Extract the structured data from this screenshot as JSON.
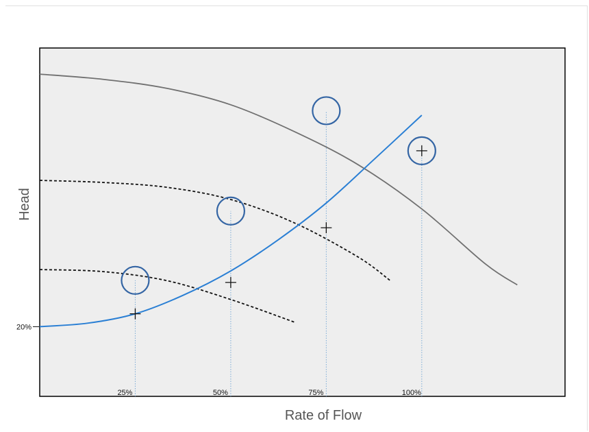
{
  "chart_data": {
    "type": "line",
    "title": "",
    "xlabel": "Rate of Flow",
    "ylabel": "Head",
    "xlim": [
      0,
      165
    ],
    "ylim": [
      0,
      100
    ],
    "grid": false,
    "x_tick_labels": [
      {
        "x": 30,
        "label": "25%"
      },
      {
        "x": 60,
        "label": "50%"
      },
      {
        "x": 90,
        "label": "75%"
      },
      {
        "x": 120,
        "label": "100%"
      }
    ],
    "y_tick_labels": [
      {
        "y": 20,
        "label": "20%"
      }
    ],
    "colors": {
      "plot_background": "#eeeeee",
      "pump_curve": "#707070",
      "system_curve": "#2a7fd4",
      "reduced_speed_curves": "#111111",
      "markers": "#111111",
      "circles": "#3465a4",
      "drop_lines": "#7aaad6"
    },
    "series": [
      {
        "style": "solid-gray",
        "x": [
          0,
          20,
          40,
          60,
          80,
          100,
          120,
          140,
          150
        ],
        "y": [
          92.5,
          91,
          88.4,
          83.7,
          76,
          66.5,
          53.8,
          38,
          32
        ]
      },
      {
        "style": "dashed-black",
        "x": [
          0,
          20,
          40,
          60,
          80,
          100,
          110
        ],
        "y": [
          62,
          61.4,
          60,
          56.5,
          49.8,
          40,
          33.3
        ]
      },
      {
        "style": "dashed-black",
        "x": [
          0,
          20,
          40,
          60,
          80
        ],
        "y": [
          36.4,
          35.8,
          33.2,
          27.8,
          21.3
        ]
      },
      {
        "style": "solid-blue",
        "x": [
          0,
          15,
          30,
          45,
          60,
          75,
          90,
          105,
          120
        ],
        "y": [
          20,
          21,
          23.7,
          29,
          36,
          45,
          55.5,
          68,
          80.7
        ]
      }
    ],
    "markers": [
      {
        "x": 30,
        "y": 23.7
      },
      {
        "x": 60,
        "y": 32.7
      },
      {
        "x": 90,
        "y": 48.4
      },
      {
        "x": 120,
        "y": 70.5
      }
    ],
    "circles": [
      {
        "x": 30,
        "y": 33.3
      },
      {
        "x": 60,
        "y": 53.2
      },
      {
        "x": 90,
        "y": 82
      },
      {
        "x": 120,
        "y": 70.5
      }
    ],
    "drop_lines_x": [
      30,
      60,
      90,
      120
    ]
  }
}
